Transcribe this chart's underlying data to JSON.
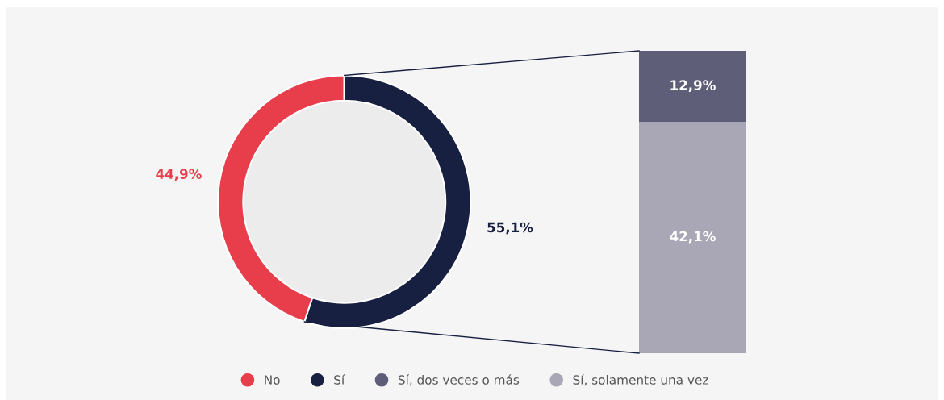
{
  "chart_data": [
    {
      "type": "donut",
      "categories": [
        "No",
        "Sí"
      ],
      "values": [
        44.9,
        55.1
      ],
      "colors": [
        "#e83e4c",
        "#172041"
      ],
      "value_labels": [
        "44,9%",
        "55,1%"
      ],
      "legend": "bottom"
    },
    {
      "type": "bar",
      "stacked": true,
      "categories": [
        null
      ],
      "tick_labels": false,
      "legend": "bottom",
      "series": [
        {
          "name": "Sí, solamente una vez",
          "color": "#a9a7b5",
          "values": [
            42.1
          ],
          "value_labels": [
            "42,1%"
          ]
        },
        {
          "name": "Sí, dos veces o más",
          "color": "#5f5e78",
          "values": [
            12.9
          ],
          "value_labels": [
            "12,9%"
          ]
        }
      ]
    }
  ]
}
